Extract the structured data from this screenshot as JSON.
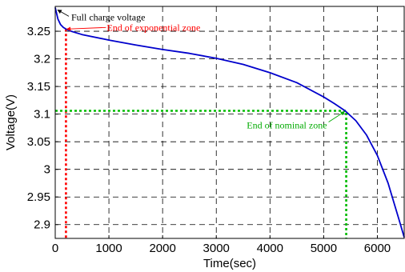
{
  "chart_data": {
    "type": "line",
    "title": "",
    "xlabel": "Time(sec)",
    "ylabel": "Voltage(V)",
    "xlim": [
      0,
      6500
    ],
    "ylim": [
      2.875,
      3.295
    ],
    "grid": true,
    "xticks": [
      0,
      1000,
      2000,
      3000,
      4000,
      5000,
      6000
    ],
    "xtick_labels": [
      "0",
      "1000",
      "2000",
      "3000",
      "4000",
      "5000",
      "6000"
    ],
    "yticks": [
      2.9,
      2.95,
      3.0,
      3.05,
      3.1,
      3.15,
      3.2,
      3.25
    ],
    "ytick_labels": [
      "2.9",
      "2.95",
      "3",
      "3.05",
      "3.1",
      "3.15",
      "3.2",
      "3.25"
    ],
    "series": [
      {
        "color": "#0000cc",
        "x": [
          0,
          20,
          50,
          100,
          150,
          200,
          300,
          500,
          1000,
          1500,
          2000,
          2500,
          3000,
          3500,
          4000,
          4500,
          5000,
          5200,
          5400,
          5600,
          5800,
          6000,
          6200,
          6400,
          6500
        ],
        "y": [
          3.293,
          3.285,
          3.272,
          3.262,
          3.257,
          3.254,
          3.25,
          3.244,
          3.234,
          3.225,
          3.217,
          3.21,
          3.201,
          3.19,
          3.175,
          3.157,
          3.131,
          3.119,
          3.106,
          3.088,
          3.062,
          3.025,
          2.975,
          2.91,
          2.877
        ]
      }
    ],
    "markers": [
      {
        "kind": "vertical-dotted",
        "color": "#ff0000",
        "x": 200,
        "y": 3.254
      },
      {
        "kind": "l-dotted",
        "color": "#00bb00",
        "x": 5420,
        "y": 3.106
      }
    ],
    "annotations": [
      {
        "text": "Full charge voltage",
        "color": "#000000",
        "x": 0,
        "y": 3.293
      },
      {
        "text": "End of exponential zone",
        "color": "#ff0000",
        "x": 200,
        "y": 3.254
      },
      {
        "text": "End of nominal zone",
        "color": "#00aa00",
        "x": 5420,
        "y": 3.106
      }
    ]
  }
}
